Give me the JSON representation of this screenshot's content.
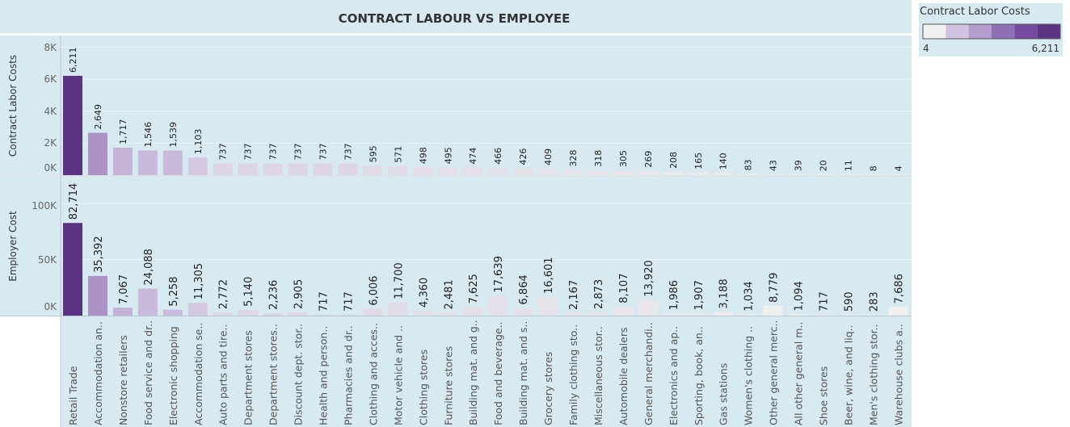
{
  "chart_data": {
    "type": "bar",
    "title": "CONTRACT LABOUR VS EMPLOYEE",
    "categories": [
      "Retail Trade",
      "Accommodation an..",
      "Nonstore retailers",
      "Food service and dr..",
      "Electronic shopping",
      "Accommodation se..",
      "Auto parts and tire..",
      "Department stores",
      "Department stores..",
      "Discount dept. stor..",
      "Health and person..",
      "Pharmacies and dr..",
      "Clothing and acces..",
      "Motor vehicle and ..",
      "Clothing stores",
      "Furniture stores",
      "Building mat. and g..",
      "Food and beverage..",
      "Building mat. and s..",
      "Grocery stores",
      "Family clothing sto..",
      "Miscellaneous stor..",
      "Automobile dealers",
      "General merchandi..",
      "Electronics and ap..",
      "Sporting, book, an..",
      "Gas stations",
      "Women's clothing ..",
      "Other general merc..",
      "All other general m..",
      "Shoe stores",
      "Beer, wine, and liq..",
      "Men's clothing stor..",
      "Warehouse clubs a.."
    ],
    "series": [
      {
        "name": "Contract Labor Costs",
        "ylabel": "Contract Labor Costs",
        "ylim": [
          0,
          8000
        ],
        "ticks": [
          "8K",
          "6K",
          "4K",
          "2K",
          "0K"
        ],
        "values": [
          6211,
          2649,
          1717,
          1546,
          1539,
          1103,
          737,
          737,
          737,
          737,
          737,
          737,
          595,
          571,
          498,
          495,
          474,
          466,
          426,
          409,
          328,
          318,
          305,
          269,
          208,
          165,
          140,
          83,
          43,
          39,
          20,
          11,
          8,
          4
        ],
        "labels": [
          "6,211",
          "2,649",
          "1,717",
          "1,546",
          "1,539",
          "1,103",
          "737",
          "737",
          "737",
          "737",
          "737",
          "737",
          "595",
          "571",
          "498",
          "495",
          "474",
          "466",
          "426",
          "409",
          "328",
          "318",
          "305",
          "269",
          "208",
          "165",
          "140",
          "83",
          "43",
          "39",
          "20",
          "11",
          "8",
          "4"
        ]
      },
      {
        "name": "Employer Cost",
        "ylabel": "Employer Cost",
        "ylim": [
          0,
          120000
        ],
        "ticks": [
          "100K",
          "50K",
          "0K"
        ],
        "values": [
          82714,
          35392,
          7067,
          24088,
          5258,
          11305,
          2772,
          5140,
          2236,
          2905,
          717,
          717,
          6006,
          11700,
          4360,
          2481,
          7625,
          17639,
          6864,
          16601,
          2167,
          2873,
          8107,
          13920,
          1986,
          1907,
          3188,
          1034,
          8779,
          1094,
          717,
          590,
          283,
          7686
        ],
        "labels": [
          "82,714",
          "35,392",
          "7,067",
          "24,088",
          "5,258",
          "11,305",
          "2,772",
          "5,140",
          "2,236",
          "2,905",
          "717",
          "717",
          "6,006",
          "11,700",
          "4,360",
          "2,481",
          "7,625",
          "17,639",
          "6,864",
          "16,601",
          "2,167",
          "2,873",
          "8,107",
          "13,920",
          "1,986",
          "1,907",
          "3,188",
          "1,034",
          "8,779",
          "1,094",
          "717",
          "590",
          "283",
          "7,686"
        ]
      }
    ],
    "color_by": "Contract Labor Costs",
    "grid": true,
    "legend": {
      "title": "Contract Labor Costs",
      "min_label": "4",
      "max_label": "6,211",
      "placement": "top-right",
      "colors": [
        "#f0f0ee",
        "#d1c4e0",
        "#b39bcc",
        "#9070b5",
        "#74499f",
        "#5c3282"
      ]
    }
  }
}
